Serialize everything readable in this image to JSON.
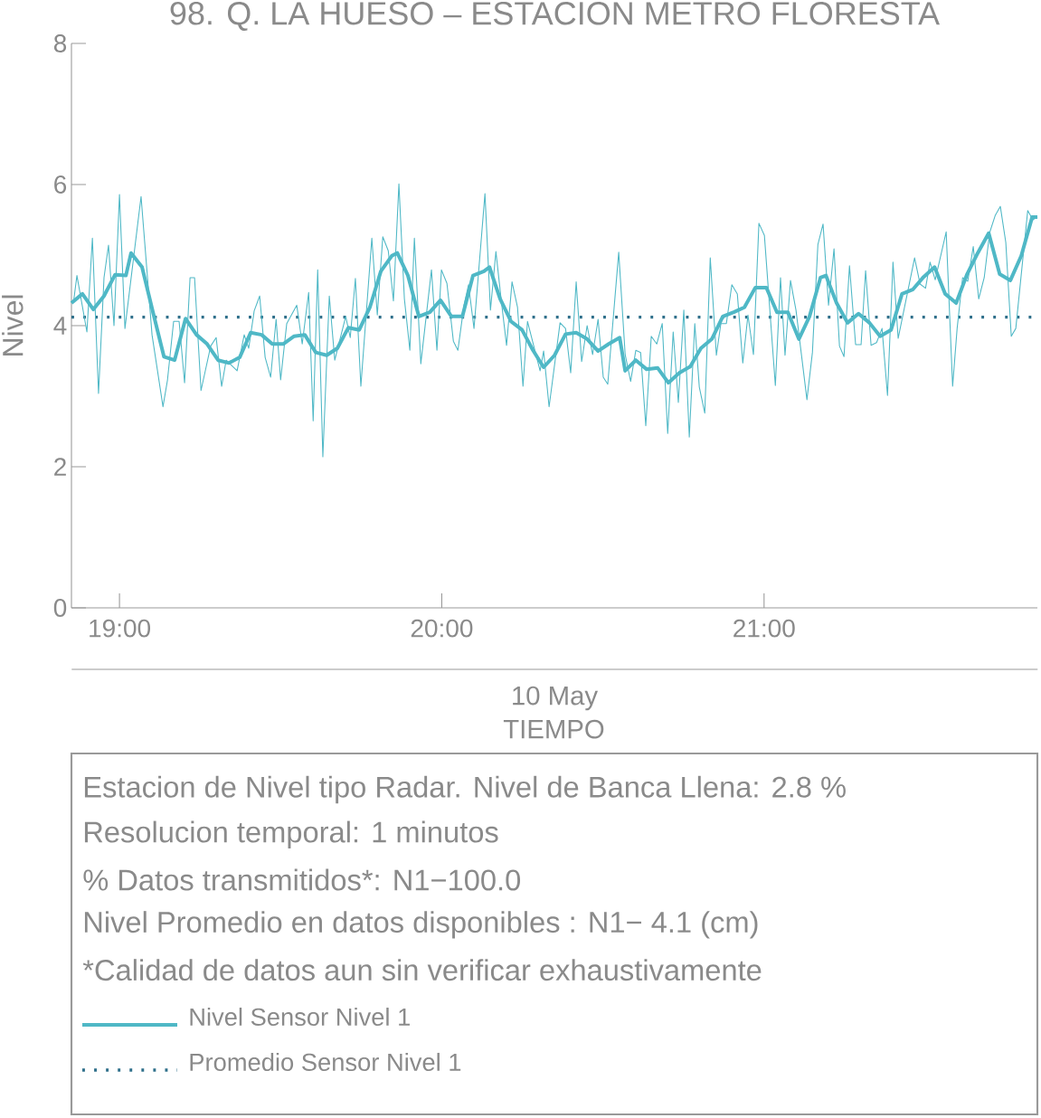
{
  "chart_data": {
    "type": "line",
    "title": "98. Q. LA HUESO – ESTACION METRO FLORESTA",
    "xlabel": "TIEMPO",
    "ylabel": "Nivel",
    "xlim": [
      18.851,
      21.848
    ],
    "ylim": [
      0,
      8
    ],
    "xticks": [
      {
        "value": 19,
        "label": "19:00"
      },
      {
        "value": 20,
        "label": "20:00"
      },
      {
        "value": 21,
        "label": "21:00"
      }
    ],
    "yticks": [
      0,
      2,
      4,
      6,
      8
    ],
    "legend": "bottom",
    "annotations": [
      "10 May",
      "Estacion de Nivel tipo Radar. Nivel de Banca Llena:  2.8 %",
      "Resolucion temporal: 1 minutos",
      "% Datos transmitidos*: N1−100.0",
      "Nivel Promedio en datos disponibles : N1−  4.1 (cm)",
      "*Calidad de datos aun sin verificar exhaustivamente"
    ],
    "ref_lines": [
      {
        "axis": "y",
        "value": 4.12,
        "label": "Promedio Sensor Nivel 1",
        "color": "#2e6f8a",
        "line_style": "dotted"
      }
    ],
    "series": [
      {
        "color": "#4fb8c6",
        "x": [
          18.857,
          18.868,
          18.899,
          18.916,
          18.935,
          18.952,
          18.966,
          18.983,
          19.0,
          19.017,
          19.067,
          19.101,
          19.135,
          19.149,
          19.168,
          19.185,
          19.202,
          19.219,
          19.233,
          19.253,
          19.283,
          19.3,
          19.317,
          19.331,
          19.365,
          19.387,
          19.401,
          19.418,
          19.435,
          19.452,
          19.469,
          19.486,
          19.5,
          19.519,
          19.55,
          19.567,
          19.587,
          19.601,
          19.615,
          19.631,
          19.651,
          19.668,
          19.702,
          19.716,
          19.732,
          19.749,
          19.783,
          19.8,
          19.817,
          19.834,
          19.85,
          19.867,
          19.884,
          19.901,
          19.915,
          19.935,
          19.968,
          19.985,
          19.999,
          20.016,
          20.036,
          20.05,
          20.069,
          20.083,
          20.1,
          20.134,
          20.151,
          20.168,
          20.184,
          20.201,
          20.218,
          20.235,
          20.252,
          20.266,
          20.305,
          20.316,
          20.333,
          20.367,
          20.384,
          20.4,
          20.417,
          20.434,
          20.451,
          20.468,
          20.485,
          20.501,
          20.515,
          20.549,
          20.569,
          20.586,
          20.602,
          20.617,
          20.633,
          20.65,
          20.667,
          20.684,
          20.701,
          20.718,
          20.734,
          20.751,
          20.768,
          20.785,
          20.799,
          20.816,
          20.833,
          20.852,
          20.866,
          20.883,
          20.9,
          20.917,
          20.934,
          20.95,
          20.967,
          20.984,
          21.001,
          21.035,
          21.051,
          21.065,
          21.082,
          21.099,
          21.133,
          21.15,
          21.167,
          21.183,
          21.2,
          21.217,
          21.234,
          21.248,
          21.265,
          21.284,
          21.301,
          21.315,
          21.332,
          21.349,
          21.366,
          21.383,
          21.4,
          21.416,
          21.467,
          21.484,
          21.501,
          21.515,
          21.531,
          21.565,
          21.585,
          21.599,
          21.616,
          21.632,
          21.649,
          21.666,
          21.683,
          21.7,
          21.717,
          21.733,
          21.75,
          21.767,
          21.781,
          21.818,
          21.834,
          21.848
        ],
        "values": [
          4.32,
          4.71,
          3.91,
          5.24,
          3.04,
          4.68,
          5.14,
          4.0,
          5.86,
          3.96,
          5.83,
          3.87,
          2.85,
          3.23,
          4.06,
          4.06,
          3.19,
          4.68,
          4.68,
          3.08,
          3.71,
          3.83,
          3.14,
          3.51,
          3.36,
          3.87,
          3.68,
          4.21,
          4.42,
          3.55,
          3.27,
          4.09,
          3.23,
          4.03,
          4.29,
          3.74,
          4.47,
          2.65,
          4.79,
          2.14,
          4.42,
          3.51,
          4.13,
          3.83,
          4.67,
          3.14,
          5.24,
          4.15,
          5.26,
          5.06,
          4.35,
          6.01,
          4.38,
          3.65,
          5.24,
          3.46,
          4.79,
          3.65,
          4.79,
          4.6,
          3.78,
          3.65,
          4.29,
          4.58,
          3.96,
          5.87,
          4.22,
          5.05,
          4.38,
          3.72,
          4.62,
          4.26,
          3.14,
          4.06,
          3.36,
          3.64,
          2.85,
          4.04,
          3.96,
          3.33,
          4.62,
          3.49,
          4.0,
          3.59,
          4.09,
          3.27,
          3.17,
          5.04,
          3.59,
          3.21,
          3.65,
          3.62,
          2.58,
          3.85,
          3.74,
          4.03,
          2.47,
          3.91,
          2.91,
          4.22,
          2.42,
          4.03,
          3.13,
          2.76,
          4.96,
          3.58,
          4.03,
          4.03,
          4.58,
          4.45,
          3.47,
          4.15,
          3.59,
          5.45,
          5.28,
          3.15,
          4.68,
          3.58,
          4.64,
          4.22,
          2.95,
          3.62,
          5.15,
          5.44,
          4.29,
          5.09,
          3.71,
          3.56,
          4.85,
          3.73,
          3.73,
          4.78,
          3.72,
          3.76,
          3.96,
          3.01,
          4.9,
          3.82,
          4.96,
          4.59,
          4.53,
          4.9,
          4.65,
          5.33,
          3.14,
          3.96,
          4.68,
          4.63,
          5.12,
          4.38,
          4.68,
          5.32,
          5.56,
          5.69,
          5.18,
          3.85,
          3.96,
          5.63,
          5.5,
          5.54
        ]
      },
      {
        "name": "Nivel Sensor Nivel 1",
        "color": "#4fb8c6",
        "x": [
          18.851,
          18.885,
          18.919,
          18.952,
          18.986,
          19.02,
          19.036,
          19.07,
          19.104,
          19.138,
          19.171,
          19.205,
          19.239,
          19.272,
          19.306,
          19.34,
          19.373,
          19.407,
          19.441,
          19.474,
          19.508,
          19.542,
          19.575,
          19.609,
          19.643,
          19.676,
          19.71,
          19.744,
          19.777,
          19.811,
          19.845,
          19.862,
          19.895,
          19.929,
          19.963,
          19.996,
          20.03,
          20.064,
          20.097,
          20.131,
          20.148,
          20.181,
          20.215,
          20.249,
          20.283,
          20.316,
          20.35,
          20.384,
          20.417,
          20.451,
          20.485,
          20.518,
          20.552,
          20.569,
          20.602,
          20.636,
          20.67,
          20.703,
          20.737,
          20.771,
          20.804,
          20.838,
          20.872,
          20.906,
          20.939,
          20.973,
          21.007,
          21.04,
          21.074,
          21.108,
          21.141,
          21.175,
          21.192,
          21.225,
          21.259,
          21.293,
          21.327,
          21.36,
          21.394,
          21.428,
          21.461,
          21.495,
          21.529,
          21.562,
          21.596,
          21.63,
          21.663,
          21.697,
          21.731,
          21.764,
          21.798,
          21.832,
          21.848
        ],
        "values": [
          4.32,
          4.45,
          4.23,
          4.42,
          4.72,
          4.71,
          5.03,
          4.83,
          4.19,
          3.56,
          3.51,
          4.1,
          3.87,
          3.74,
          3.51,
          3.47,
          3.55,
          3.9,
          3.87,
          3.74,
          3.74,
          3.85,
          3.87,
          3.62,
          3.58,
          3.68,
          3.97,
          3.94,
          4.26,
          4.77,
          4.99,
          5.03,
          4.71,
          4.13,
          4.19,
          4.36,
          4.13,
          4.13,
          4.71,
          4.77,
          4.83,
          4.38,
          4.06,
          3.94,
          3.65,
          3.41,
          3.58,
          3.88,
          3.9,
          3.81,
          3.64,
          3.74,
          3.83,
          3.36,
          3.51,
          3.38,
          3.4,
          3.19,
          3.33,
          3.42,
          3.68,
          3.81,
          4.13,
          4.19,
          4.26,
          4.54,
          4.54,
          4.19,
          4.19,
          3.81,
          4.13,
          4.68,
          4.71,
          4.32,
          4.04,
          4.17,
          4.04,
          3.85,
          3.94,
          4.45,
          4.51,
          4.69,
          4.83,
          4.45,
          4.32,
          4.73,
          5.03,
          5.31,
          4.73,
          4.64,
          4.99,
          5.54,
          5.54
        ]
      }
    ]
  }
}
